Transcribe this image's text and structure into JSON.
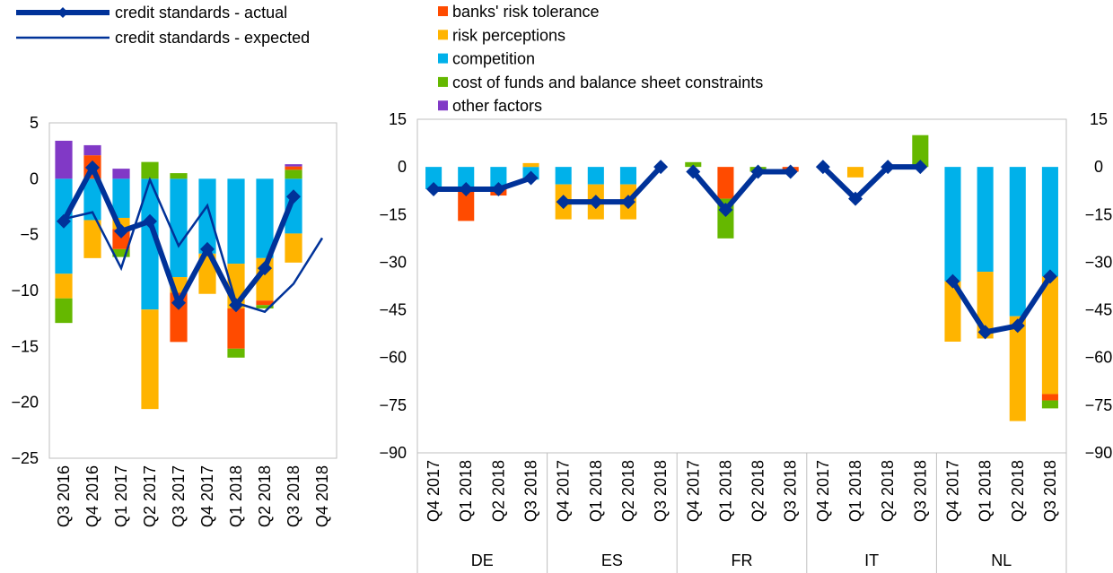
{
  "colors": {
    "banks_risk_tolerance": "#FF4B00",
    "risk_perceptions": "#FFB400",
    "competition": "#00B1EA",
    "cost_of_funds": "#65B800",
    "other_factors": "#8139C6",
    "line": "#003299"
  },
  "legend": {
    "lines": [
      {
        "label": "credit standards - actual",
        "style": "thick-diamond"
      },
      {
        "label": "credit standards - expected",
        "style": "thin"
      }
    ],
    "factors": [
      {
        "label": "banks' risk tolerance",
        "color_key": "banks_risk_tolerance"
      },
      {
        "label": "risk perceptions",
        "color_key": "risk_perceptions"
      },
      {
        "label": "competition",
        "color_key": "competition"
      },
      {
        "label": "cost of funds and balance sheet constraints",
        "color_key": "cost_of_funds"
      },
      {
        "label": "other factors",
        "color_key": "other_factors"
      }
    ]
  },
  "chart_data": [
    {
      "type": "bar",
      "stacked": true,
      "categories": [
        "Q3 2016",
        "Q4 2016",
        "Q1 2017",
        "Q2 2017",
        "Q3 2017",
        "Q4 2017",
        "Q1 2018",
        "Q2 2018",
        "Q3 2018",
        "Q4 2018"
      ],
      "ylim": [
        -25,
        5
      ],
      "yticks": [
        5,
        0,
        -5,
        -10,
        -15,
        -20,
        -25
      ],
      "series": [
        {
          "key": "competition",
          "values": [
            -8.5,
            -3.7,
            -3.5,
            -11.7,
            -8.8,
            -6.7,
            -7.6,
            -7.1,
            -4.9,
            null
          ]
        },
        {
          "key": "risk_perceptions",
          "values": [
            -2.2,
            -3.4,
            -1.0,
            -8.9,
            -1.4,
            -3.6,
            -4.0,
            -3.8,
            -2.6,
            null
          ]
        },
        {
          "key": "banks_risk_tolerance",
          "values": [
            0,
            0,
            -1.8,
            0,
            -4.4,
            0,
            -3.6,
            -0.4,
            0,
            null
          ]
        },
        {
          "key": "cost_of_funds",
          "values": [
            -2.2,
            0,
            -0.7,
            0,
            0,
            0,
            -0.8,
            -0.3,
            0,
            null
          ]
        },
        {
          "key": "cost_of_funds_pos",
          "color_key": "cost_of_funds",
          "values": [
            0,
            0,
            0,
            1.5,
            0.5,
            0,
            0,
            0,
            0.8,
            null
          ]
        },
        {
          "key": "banks_risk_tolerance_pos",
          "color_key": "banks_risk_tolerance",
          "values": [
            0,
            2.1,
            0,
            0,
            0,
            0,
            0,
            0,
            0.3,
            null
          ]
        },
        {
          "key": "other_factors",
          "values": [
            3.4,
            0.9,
            0.9,
            0,
            0,
            0,
            0,
            0,
            0.2,
            null
          ]
        }
      ],
      "lines": [
        {
          "key": "actual",
          "values": [
            -3.8,
            1.0,
            -4.7,
            -3.8,
            -11.1,
            -6.3,
            -11.3,
            -8.0,
            -1.6,
            null
          ]
        },
        {
          "key": "expected",
          "values": [
            -3.6,
            -3.0,
            -8.0,
            -0.1,
            -6.0,
            -2.4,
            -11.1,
            -11.9,
            -9.4,
            -5.3
          ]
        }
      ]
    },
    {
      "type": "bar",
      "stacked": true,
      "groups": [
        {
          "name": "DE",
          "categories": [
            "Q4 2017",
            "Q1 2018",
            "Q2 2018",
            "Q3 2018"
          ],
          "stacks": [
            {
              "competition": -7,
              "banks_risk_tolerance": 0,
              "risk_perceptions": 0,
              "cost_of_funds": 0,
              "other_factors": 0
            },
            {
              "competition": -7,
              "banks_risk_tolerance": -10,
              "risk_perceptions": 0,
              "cost_of_funds": 0,
              "other_factors": 0
            },
            {
              "competition": -7,
              "banks_risk_tolerance": -2,
              "risk_perceptions": 0,
              "cost_of_funds": 0,
              "other_factors": 0
            },
            {
              "competition": -4,
              "banks_risk_tolerance": 0,
              "risk_perceptions": 1.2,
              "cost_of_funds": 0,
              "other_factors": 0
            }
          ],
          "actual": [
            -7,
            -7,
            -7,
            -3.5
          ]
        },
        {
          "name": "ES",
          "categories": [
            "Q4 2017",
            "Q1 2018",
            "Q2 2018",
            "Q3 2018"
          ],
          "stacks": [
            {
              "competition": -5.5,
              "risk_perceptions": -11,
              "banks_risk_tolerance": 0,
              "cost_of_funds": 0,
              "other_factors": 0
            },
            {
              "competition": -5.5,
              "risk_perceptions": -11,
              "banks_risk_tolerance": 0,
              "cost_of_funds": 0,
              "other_factors": 0
            },
            {
              "competition": -5.5,
              "risk_perceptions": -11,
              "banks_risk_tolerance": 0,
              "cost_of_funds": 0,
              "other_factors": 0
            },
            {
              "competition": 0,
              "risk_perceptions": 0,
              "banks_risk_tolerance": 0,
              "cost_of_funds": 0,
              "other_factors": 0
            }
          ],
          "actual": [
            -11,
            -11,
            -11,
            0
          ]
        },
        {
          "name": "FR",
          "categories": [
            "Q4 2017",
            "Q1 2018",
            "Q2 2018",
            "Q3 2018"
          ],
          "stacks": [
            {
              "competition": 0,
              "risk_perceptions": 0,
              "banks_risk_tolerance": 0,
              "cost_of_funds": 1.5,
              "other_factors": 0
            },
            {
              "competition": 0,
              "risk_perceptions": 0,
              "banks_risk_tolerance": -10,
              "cost_of_funds": -12.5,
              "other_factors": 0
            },
            {
              "competition": 0,
              "risk_perceptions": 0,
              "banks_risk_tolerance": 0,
              "cost_of_funds": -1.5,
              "other_factors": 0
            },
            {
              "competition": 0,
              "risk_perceptions": 0,
              "banks_risk_tolerance": -1.5,
              "cost_of_funds": 0,
              "other_factors": 0
            }
          ],
          "actual": [
            -1.5,
            -13.5,
            -1.5,
            -1.5
          ]
        },
        {
          "name": "IT",
          "categories": [
            "Q4 2017",
            "Q1 2018",
            "Q2 2018",
            "Q3 2018"
          ],
          "stacks": [
            {
              "competition": 0,
              "risk_perceptions": 0,
              "banks_risk_tolerance": 0,
              "cost_of_funds": 0,
              "other_factors": 0
            },
            {
              "competition": 0,
              "risk_perceptions": -3.3,
              "banks_risk_tolerance": 0,
              "cost_of_funds": 0,
              "other_factors": 0
            },
            {
              "competition": 0,
              "risk_perceptions": 0,
              "banks_risk_tolerance": 0,
              "cost_of_funds": 0,
              "other_factors": 0
            },
            {
              "competition": 0,
              "risk_perceptions": 0,
              "banks_risk_tolerance": 0,
              "cost_of_funds": 10,
              "other_factors": 0
            }
          ],
          "actual": [
            0,
            -10,
            0,
            0
          ]
        },
        {
          "name": "NL",
          "categories": [
            "Q4 2017",
            "Q1 2018",
            "Q2 2018",
            "Q3 2018"
          ],
          "stacks": [
            {
              "competition": -36,
              "risk_perceptions": -19,
              "banks_risk_tolerance": 0,
              "cost_of_funds": 0,
              "other_factors": 0
            },
            {
              "competition": -33,
              "risk_perceptions": -21,
              "banks_risk_tolerance": 0,
              "cost_of_funds": 0,
              "other_factors": 0
            },
            {
              "competition": -47,
              "risk_perceptions": -33,
              "banks_risk_tolerance": 0,
              "cost_of_funds": 0,
              "other_factors": 0
            },
            {
              "competition": -34.5,
              "risk_perceptions": -37,
              "banks_risk_tolerance": -2,
              "cost_of_funds": -2.5,
              "other_factors": 0
            }
          ],
          "actual": [
            -36,
            -52,
            -50,
            -34.5
          ]
        }
      ],
      "ylim": [
        -90,
        15
      ],
      "yticks": [
        15,
        0,
        -15,
        -30,
        -45,
        -60,
        -75,
        -90
      ]
    }
  ]
}
